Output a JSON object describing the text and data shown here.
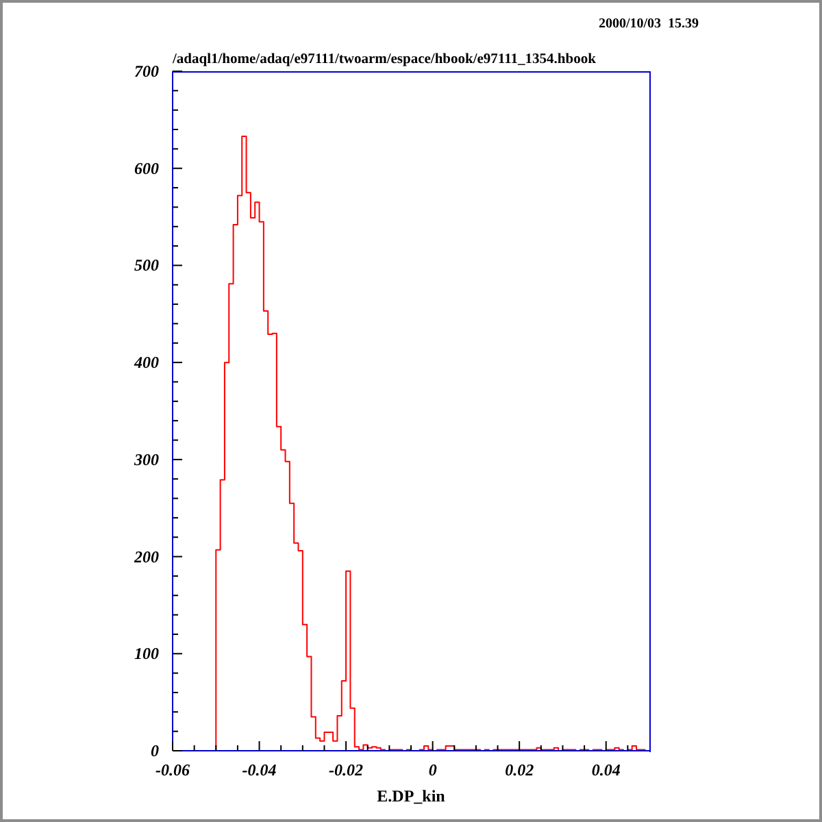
{
  "chart_data": {
    "type": "histogram",
    "title": "/adaql1/home/adaq/e97111/twoarm/espace/hbook/e97111_1354.hbook",
    "xlabel": "E.DP_kin",
    "annotations": [
      "2000/10/03  15.39"
    ],
    "bins": [
      -0.05,
      -0.049,
      -0.048,
      -0.047,
      -0.046,
      -0.045,
      -0.044,
      -0.043,
      -0.042,
      -0.041,
      -0.04,
      -0.039,
      -0.038,
      -0.037,
      -0.036,
      -0.035,
      -0.034,
      -0.033,
      -0.032,
      -0.031,
      -0.03,
      -0.029,
      -0.028,
      -0.027,
      -0.026,
      -0.025,
      -0.024,
      -0.023,
      -0.022,
      -0.021,
      -0.02,
      -0.019,
      -0.018,
      -0.017,
      -0.016,
      -0.015,
      -0.014,
      -0.013,
      -0.012,
      -0.011,
      -0.01,
      -0.009,
      -0.008,
      -0.007,
      -0.006,
      -0.005,
      -0.004,
      -0.003,
      -0.002,
      -0.001,
      0,
      0.001,
      0.002,
      0.003,
      0.004,
      0.005,
      0.006,
      0.007,
      0.008,
      0.009,
      0.01,
      0.011,
      0.012,
      0.013,
      0.014,
      0.015,
      0.016,
      0.017,
      0.018,
      0.019,
      0.02,
      0.021,
      0.022,
      0.023,
      0.024,
      0.025,
      0.026,
      0.027,
      0.028,
      0.029,
      0.03,
      0.031,
      0.032,
      0.033,
      0.034,
      0.035,
      0.036,
      0.037,
      0.038,
      0.039,
      0.04,
      0.041,
      0.042,
      0.043,
      0.044,
      0.045,
      0.046,
      0.047,
      0.048,
      0.049,
      0.05
    ],
    "values": [
      207,
      279,
      400,
      481,
      542,
      572,
      633,
      575,
      549,
      565,
      545,
      453,
      429,
      430,
      334,
      310,
      298,
      255,
      214,
      206,
      130,
      97,
      35,
      13,
      10,
      19,
      19,
      10,
      36,
      72,
      185,
      44,
      4,
      1,
      6,
      3,
      4,
      3,
      1,
      0,
      1,
      1,
      1,
      0,
      1,
      0,
      0,
      1,
      5,
      1,
      0,
      1,
      1,
      5,
      5,
      1,
      1,
      1,
      1,
      1,
      1,
      0,
      1,
      0,
      1,
      1,
      1,
      1,
      1,
      1,
      1,
      1,
      1,
      1,
      3,
      1,
      1,
      1,
      3,
      0,
      1,
      1,
      1,
      0,
      1,
      1,
      0,
      1,
      1,
      0,
      1,
      1,
      3,
      1,
      0,
      1,
      5,
      1,
      1,
      0
    ],
    "color": "#ff0000",
    "xlim": [
      -0.06,
      0.05
    ],
    "ylim": [
      0,
      700
    ],
    "xticks": [
      -0.06,
      {
        "value": -0.055,
        "label": null
      },
      {
        "value": -0.05,
        "label": null
      },
      {
        "value": -0.045,
        "label": null
      },
      -0.04,
      {
        "value": -0.035,
        "label": null
      },
      {
        "value": -0.03,
        "label": null
      },
      {
        "value": -0.025,
        "label": null
      },
      -0.02,
      {
        "value": -0.015,
        "label": null
      },
      {
        "value": -0.01,
        "label": null
      },
      {
        "value": -0.005,
        "label": null
      },
      0,
      {
        "value": 0.005,
        "label": null
      },
      {
        "value": 0.01,
        "label": null
      },
      {
        "value": 0.015,
        "label": null
      },
      0.02,
      {
        "value": 0.025,
        "label": null
      },
      {
        "value": 0.03,
        "label": null
      },
      {
        "value": 0.035,
        "label": null
      },
      0.04,
      {
        "value": 0.045,
        "label": null
      }
    ],
    "yticks": [
      0,
      {
        "value": 20,
        "label": null
      },
      {
        "value": 40,
        "label": null
      },
      {
        "value": 60,
        "label": null
      },
      {
        "value": 80,
        "label": null
      },
      100,
      {
        "value": 120,
        "label": null
      },
      {
        "value": 140,
        "label": null
      },
      {
        "value": 160,
        "label": null
      },
      {
        "value": 180,
        "label": null
      },
      200,
      {
        "value": 220,
        "label": null
      },
      {
        "value": 240,
        "label": null
      },
      {
        "value": 260,
        "label": null
      },
      {
        "value": 280,
        "label": null
      },
      300,
      {
        "value": 320,
        "label": null
      },
      {
        "value": 340,
        "label": null
      },
      {
        "value": 360,
        "label": null
      },
      {
        "value": 380,
        "label": null
      },
      400,
      {
        "value": 420,
        "label": null
      },
      {
        "value": 440,
        "label": null
      },
      {
        "value": 460,
        "label": null
      },
      {
        "value": 480,
        "label": null
      },
      500,
      {
        "value": 520,
        "label": null
      },
      {
        "value": 540,
        "label": null
      },
      {
        "value": 560,
        "label": null
      },
      {
        "value": 580,
        "label": null
      },
      600,
      {
        "value": 620,
        "label": null
      },
      {
        "value": 640,
        "label": null
      },
      {
        "value": 660,
        "label": null
      },
      {
        "value": 680,
        "label": null
      },
      700
    ]
  }
}
